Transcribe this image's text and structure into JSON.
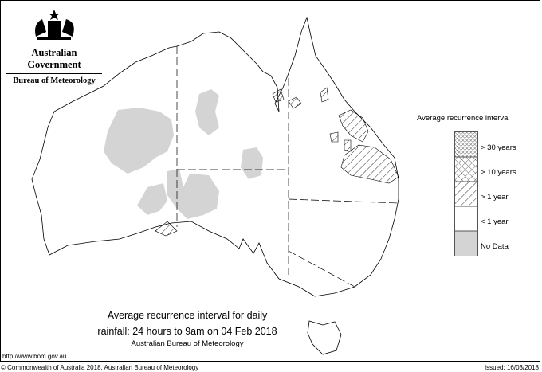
{
  "header": {
    "government": "Australian Government",
    "agency": "Bureau of Meteorology",
    "logo": "coat-of-arms"
  },
  "legend": {
    "title": "Average recurrence interval",
    "items": [
      {
        "label": "> 30 years",
        "pattern": "dense-crosshatch"
      },
      {
        "label": "> 10 years",
        "pattern": "crosshatch"
      },
      {
        "label": "> 1 year",
        "pattern": "diagonal-hatch"
      },
      {
        "label": "< 1 year",
        "pattern": "white"
      },
      {
        "label": "No Data",
        "pattern": "grey",
        "color": "#d4d4d4"
      }
    ]
  },
  "caption": {
    "line1": "Average recurrence interval for daily",
    "line2": "rainfall: 24 hours to 9am on 04 Feb 2018",
    "line3": "Australian Bureau of Meteorology"
  },
  "footer": {
    "url": "http://www.bom.gov.au",
    "copyright": "© Commonwealth of Australia 2018, Australian Bureau of Meteorology",
    "issued": "Issued: 16/03/2018"
  }
}
